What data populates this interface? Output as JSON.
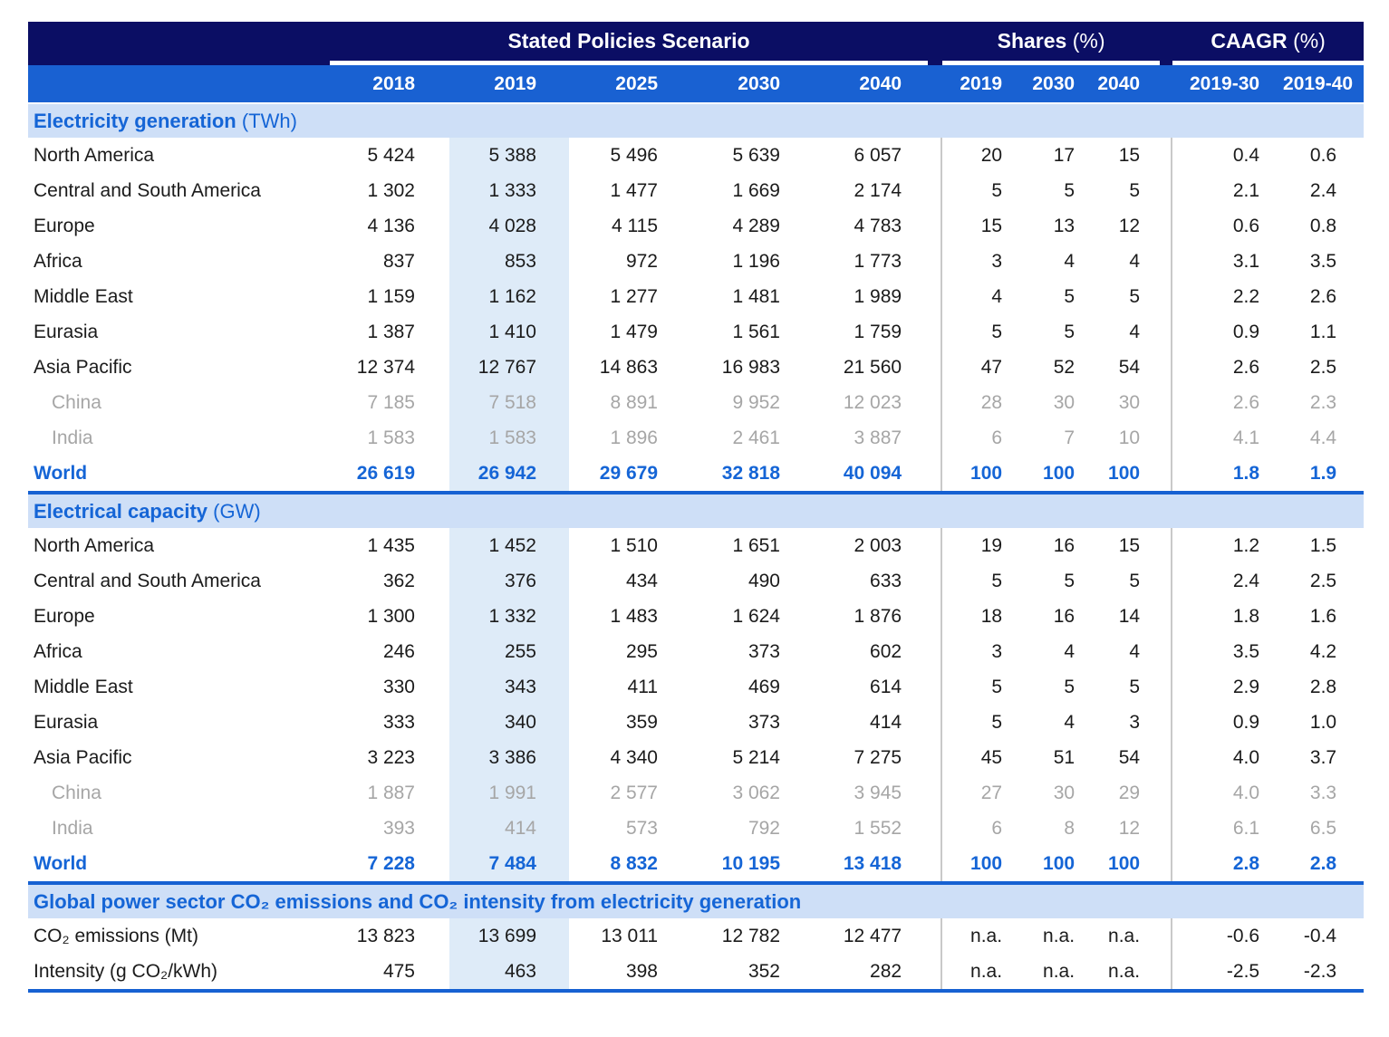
{
  "header": {
    "group1": "Stated Policies Scenario",
    "group2": {
      "label": "Shares",
      "suffix": "(%)"
    },
    "group3": {
      "label": "CAAGR",
      "suffix": "(%)"
    },
    "sps_years": [
      "2018",
      "2019",
      "2025",
      "2030",
      "2040"
    ],
    "share_years": [
      "2019",
      "2030",
      "2040"
    ],
    "caagr_periods": [
      "2019-30",
      "2019-40"
    ]
  },
  "colors": {
    "navy_band": "#0B0E64",
    "year_row_blue": "#1961D2",
    "section_band_bg": "#CEDFF7",
    "accent_blue": "#1565D6",
    "shaded_2019_column": "#DEEBF8",
    "sub_row_gray": "#A6A6A6",
    "body_text": "#1B1B1B",
    "vertical_rule_gray": "#C9C9C9"
  },
  "sections": [
    {
      "title": "Electricity generation",
      "unit": "(TWh)",
      "rows": [
        {
          "label": "North America",
          "style": "normal",
          "values": [
            "5 424",
            "5 388",
            "5 496",
            "5 639",
            "6 057"
          ],
          "shares": [
            "20",
            "17",
            "15"
          ],
          "caagr": [
            "0.4",
            "0.6"
          ]
        },
        {
          "label": "Central and South America",
          "style": "normal",
          "values": [
            "1 302",
            "1 333",
            "1 477",
            "1 669",
            "2 174"
          ],
          "shares": [
            "5",
            "5",
            "5"
          ],
          "caagr": [
            "2.1",
            "2.4"
          ]
        },
        {
          "label": "Europe",
          "style": "normal",
          "values": [
            "4 136",
            "4 028",
            "4 115",
            "4 289",
            "4 783"
          ],
          "shares": [
            "15",
            "13",
            "12"
          ],
          "caagr": [
            "0.6",
            "0.8"
          ]
        },
        {
          "label": "Africa",
          "style": "normal",
          "values": [
            "837",
            "853",
            "972",
            "1 196",
            "1 773"
          ],
          "shares": [
            "3",
            "4",
            "4"
          ],
          "caagr": [
            "3.1",
            "3.5"
          ]
        },
        {
          "label": "Middle East",
          "style": "normal",
          "values": [
            "1 159",
            "1 162",
            "1 277",
            "1 481",
            "1 989"
          ],
          "shares": [
            "4",
            "5",
            "5"
          ],
          "caagr": [
            "2.2",
            "2.6"
          ]
        },
        {
          "label": "Eurasia",
          "style": "normal",
          "values": [
            "1 387",
            "1 410",
            "1 479",
            "1 561",
            "1 759"
          ],
          "shares": [
            "5",
            "5",
            "4"
          ],
          "caagr": [
            "0.9",
            "1.1"
          ]
        },
        {
          "label": "Asia Pacific",
          "style": "normal",
          "values": [
            "12 374",
            "12 767",
            "14 863",
            "16 983",
            "21 560"
          ],
          "shares": [
            "47",
            "52",
            "54"
          ],
          "caagr": [
            "2.6",
            "2.5"
          ]
        },
        {
          "label": "China",
          "style": "sub",
          "values": [
            "7 185",
            "7 518",
            "8 891",
            "9 952",
            "12 023"
          ],
          "shares": [
            "28",
            "30",
            "30"
          ],
          "caagr": [
            "2.6",
            "2.3"
          ]
        },
        {
          "label": "India",
          "style": "sub",
          "values": [
            "1 583",
            "1 583",
            "1 896",
            "2 461",
            "3 887"
          ],
          "shares": [
            "6",
            "7",
            "10"
          ],
          "caagr": [
            "4.1",
            "4.4"
          ]
        },
        {
          "label": "World",
          "style": "total",
          "values": [
            "26 619",
            "26 942",
            "29 679",
            "32 818",
            "40 094"
          ],
          "shares": [
            "100",
            "100",
            "100"
          ],
          "caagr": [
            "1.8",
            "1.9"
          ]
        }
      ]
    },
    {
      "title": "Electrical capacity",
      "unit": "(GW)",
      "rows": [
        {
          "label": "North America",
          "style": "normal",
          "values": [
            "1 435",
            "1 452",
            "1 510",
            "1 651",
            "2 003"
          ],
          "shares": [
            "19",
            "16",
            "15"
          ],
          "caagr": [
            "1.2",
            "1.5"
          ]
        },
        {
          "label": "Central and South America",
          "style": "normal",
          "values": [
            "362",
            "376",
            "434",
            "490",
            "633"
          ],
          "shares": [
            "5",
            "5",
            "5"
          ],
          "caagr": [
            "2.4",
            "2.5"
          ]
        },
        {
          "label": "Europe",
          "style": "normal",
          "values": [
            "1 300",
            "1 332",
            "1 483",
            "1 624",
            "1 876"
          ],
          "shares": [
            "18",
            "16",
            "14"
          ],
          "caagr": [
            "1.8",
            "1.6"
          ]
        },
        {
          "label": "Africa",
          "style": "normal",
          "values": [
            "246",
            "255",
            "295",
            "373",
            "602"
          ],
          "shares": [
            "3",
            "4",
            "4"
          ],
          "caagr": [
            "3.5",
            "4.2"
          ]
        },
        {
          "label": "Middle East",
          "style": "normal",
          "values": [
            "330",
            "343",
            "411",
            "469",
            "614"
          ],
          "shares": [
            "5",
            "5",
            "5"
          ],
          "caagr": [
            "2.9",
            "2.8"
          ]
        },
        {
          "label": "Eurasia",
          "style": "normal",
          "values": [
            "333",
            "340",
            "359",
            "373",
            "414"
          ],
          "shares": [
            "5",
            "4",
            "3"
          ],
          "caagr": [
            "0.9",
            "1.0"
          ]
        },
        {
          "label": "Asia Pacific",
          "style": "normal",
          "values": [
            "3 223",
            "3 386",
            "4 340",
            "5 214",
            "7 275"
          ],
          "shares": [
            "45",
            "51",
            "54"
          ],
          "caagr": [
            "4.0",
            "3.7"
          ]
        },
        {
          "label": "China",
          "style": "sub",
          "values": [
            "1 887",
            "1 991",
            "2 577",
            "3 062",
            "3 945"
          ],
          "shares": [
            "27",
            "30",
            "29"
          ],
          "caagr": [
            "4.0",
            "3.3"
          ]
        },
        {
          "label": "India",
          "style": "sub",
          "values": [
            "393",
            "414",
            "573",
            "792",
            "1 552"
          ],
          "shares": [
            "6",
            "8",
            "12"
          ],
          "caagr": [
            "6.1",
            "6.5"
          ]
        },
        {
          "label": "World",
          "style": "total",
          "values": [
            "7 228",
            "7 484",
            "8 832",
            "10 195",
            "13 418"
          ],
          "shares": [
            "100",
            "100",
            "100"
          ],
          "caagr": [
            "2.8",
            "2.8"
          ]
        }
      ]
    },
    {
      "title": "Global power sector CO₂ emissions and CO₂ intensity from electricity generation",
      "unit": "",
      "rows": [
        {
          "label": "CO₂ emissions (Mt)",
          "style": "normal",
          "values": [
            "13 823",
            "13 699",
            "13 011",
            "12 782",
            "12 477"
          ],
          "shares": [
            "n.a.",
            "n.a.",
            "n.a."
          ],
          "caagr": [
            "-0.6",
            "-0.4"
          ]
        },
        {
          "label": "Intensity (g CO₂/kWh)",
          "style": "normal",
          "values": [
            "475",
            "463",
            "398",
            "352",
            "282"
          ],
          "shares": [
            "n.a.",
            "n.a.",
            "n.a."
          ],
          "caagr": [
            "-2.5",
            "-2.3"
          ]
        }
      ]
    }
  ]
}
